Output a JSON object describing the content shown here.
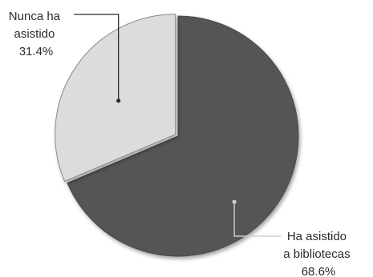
{
  "chart_data": {
    "type": "pie",
    "slices": [
      {
        "name": "Ha asistido a bibliotecas",
        "value": 68.6,
        "label_lines": [
          "Ha asistido",
          "a bibliotecas",
          "68.6%"
        ],
        "color": "#555555"
      },
      {
        "name": "Nunca ha asistido",
        "value": 31.4,
        "label_lines": [
          "Nunca ha",
          "asistido",
          "31.4%"
        ],
        "color": "#dcdcdc"
      }
    ],
    "exploded_slice": "Nunca ha asistido"
  }
}
